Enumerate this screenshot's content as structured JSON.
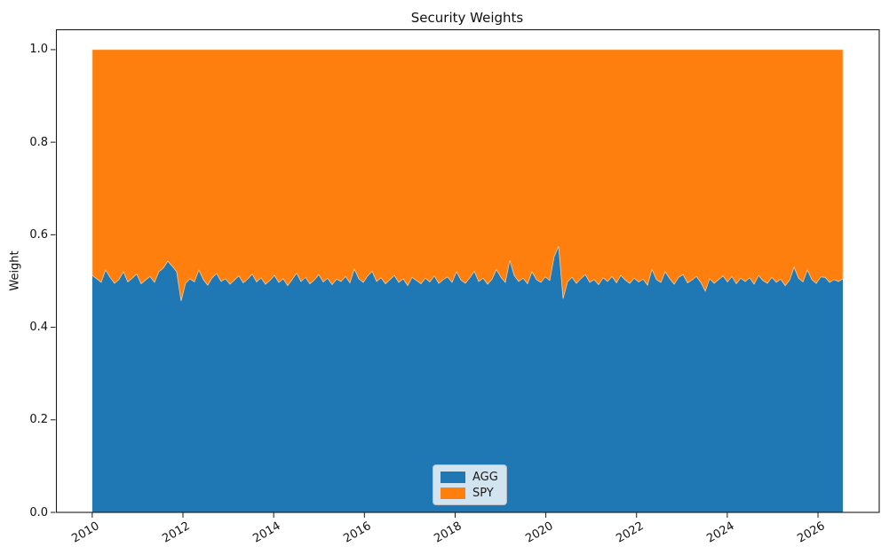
{
  "chart_data": {
    "type": "area",
    "stacked": true,
    "title": "Security Weights",
    "xlabel": "",
    "ylabel": "Weight",
    "grid": false,
    "legend_position": "lower center",
    "x_start": 2010.0,
    "x_end": 2026.55,
    "xlim": [
      2009.2,
      2027.35
    ],
    "ylim": [
      0,
      1.044
    ],
    "xticks": [
      2010,
      2012,
      2014,
      2016,
      2018,
      2020,
      2022,
      2024,
      2026
    ],
    "yticks": [
      0.0,
      0.2,
      0.4,
      0.6,
      0.8,
      1.0
    ],
    "ytick_labels": [
      "0.0",
      "0.2",
      "0.4",
      "0.6",
      "0.8",
      "1.0"
    ],
    "series": [
      {
        "name": "AGG",
        "color": "#1f77b4",
        "values": [
          0.512,
          0.505,
          0.497,
          0.524,
          0.508,
          0.495,
          0.503,
          0.52,
          0.498,
          0.506,
          0.515,
          0.494,
          0.502,
          0.51,
          0.497,
          0.52,
          0.528,
          0.543,
          0.532,
          0.52,
          0.457,
          0.495,
          0.505,
          0.498,
          0.524,
          0.503,
          0.491,
          0.507,
          0.516,
          0.499,
          0.505,
          0.493,
          0.502,
          0.511,
          0.496,
          0.504,
          0.515,
          0.498,
          0.507,
          0.493,
          0.501,
          0.512,
          0.497,
          0.505,
          0.49,
          0.503,
          0.517,
          0.499,
          0.508,
          0.494,
          0.502,
          0.514,
          0.498,
          0.506,
          0.492,
          0.504,
          0.499,
          0.51,
          0.496,
          0.526,
          0.505,
          0.497,
          0.511,
          0.521,
          0.499,
          0.507,
          0.494,
          0.503,
          0.512,
          0.497,
          0.505,
          0.49,
          0.508,
          0.501,
          0.494,
          0.506,
          0.498,
          0.511,
          0.495,
          0.503,
          0.509,
          0.497,
          0.52,
          0.502,
          0.495,
          0.507,
          0.521,
          0.499,
          0.506,
          0.493,
          0.504,
          0.525,
          0.508,
          0.497,
          0.545,
          0.512,
          0.499,
          0.506,
          0.494,
          0.52,
          0.503,
          0.497,
          0.509,
          0.501,
          0.553,
          0.575,
          0.462,
          0.498,
          0.508,
          0.495,
          0.505,
          0.514,
          0.497,
          0.503,
          0.492,
          0.507,
          0.499,
          0.51,
          0.496,
          0.512,
          0.502,
          0.495,
          0.506,
          0.498,
          0.504,
          0.491,
          0.525,
          0.503,
          0.497,
          0.52,
          0.505,
          0.493,
          0.508,
          0.514,
          0.496,
          0.502,
          0.51,
          0.497,
          0.478,
          0.505,
          0.495,
          0.503,
          0.511,
          0.498,
          0.51,
          0.494,
          0.506,
          0.499,
          0.507,
          0.493,
          0.512,
          0.501,
          0.495,
          0.508,
          0.497,
          0.504,
          0.49,
          0.502,
          0.53,
          0.506,
          0.498,
          0.524,
          0.503,
          0.495,
          0.509,
          0.508,
          0.497,
          0.503,
          0.499,
          0.505
        ]
      },
      {
        "name": "SPY",
        "color": "#ff7f0e",
        "edge_highlight": "#ffd9a8",
        "values": [
          0.488,
          0.495,
          0.503,
          0.476,
          0.492,
          0.505,
          0.497,
          0.48,
          0.502,
          0.494,
          0.485,
          0.506,
          0.498,
          0.49,
          0.503,
          0.48,
          0.472,
          0.457,
          0.468,
          0.48,
          0.543,
          0.505,
          0.495,
          0.502,
          0.476,
          0.497,
          0.509,
          0.493,
          0.484,
          0.501,
          0.495,
          0.507,
          0.498,
          0.489,
          0.504,
          0.496,
          0.485,
          0.502,
          0.493,
          0.507,
          0.499,
          0.488,
          0.503,
          0.495,
          0.51,
          0.497,
          0.483,
          0.501,
          0.492,
          0.506,
          0.498,
          0.486,
          0.502,
          0.494,
          0.508,
          0.496,
          0.501,
          0.49,
          0.504,
          0.474,
          0.495,
          0.503,
          0.489,
          0.479,
          0.501,
          0.493,
          0.506,
          0.497,
          0.488,
          0.503,
          0.495,
          0.51,
          0.492,
          0.499,
          0.506,
          0.494,
          0.502,
          0.489,
          0.505,
          0.497,
          0.491,
          0.503,
          0.48,
          0.498,
          0.505,
          0.493,
          0.479,
          0.501,
          0.494,
          0.507,
          0.496,
          0.475,
          0.492,
          0.503,
          0.455,
          0.488,
          0.501,
          0.494,
          0.506,
          0.48,
          0.497,
          0.503,
          0.491,
          0.499,
          0.447,
          0.425,
          0.538,
          0.502,
          0.492,
          0.505,
          0.495,
          0.486,
          0.503,
          0.497,
          0.508,
          0.493,
          0.501,
          0.49,
          0.504,
          0.488,
          0.498,
          0.505,
          0.494,
          0.502,
          0.496,
          0.509,
          0.475,
          0.497,
          0.503,
          0.48,
          0.495,
          0.507,
          0.492,
          0.486,
          0.504,
          0.498,
          0.49,
          0.503,
          0.522,
          0.495,
          0.505,
          0.497,
          0.489,
          0.502,
          0.49,
          0.506,
          0.494,
          0.501,
          0.493,
          0.507,
          0.488,
          0.499,
          0.505,
          0.492,
          0.503,
          0.496,
          0.51,
          0.498,
          0.47,
          0.494,
          0.502,
          0.476,
          0.497,
          0.505,
          0.491,
          0.492,
          0.503,
          0.497,
          0.501,
          0.495
        ]
      }
    ]
  },
  "legend": {
    "items": [
      {
        "label": "AGG",
        "color": "#1f77b4"
      },
      {
        "label": "SPY",
        "color": "#ff7f0e"
      }
    ]
  },
  "axes_style": {
    "spine_color": "#1a1a1a",
    "tick_color": "#1a1a1a",
    "plot_background": "#ffffff"
  }
}
